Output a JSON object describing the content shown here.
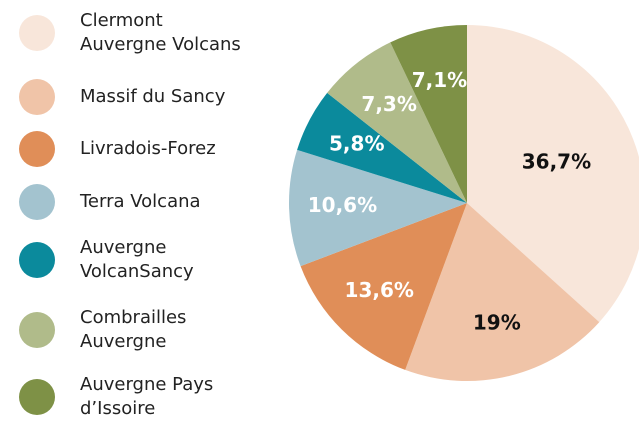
{
  "chart_data": {
    "type": "pie",
    "categories": [
      "Clermont\nAuvergne Volcans",
      "Massif du Sancy",
      "Livradois-Forez",
      "Terra Volcana",
      "Auvergne\nVolcanSancy",
      "Combrailles\nAuvergne",
      "Auvergne Pays\nd’Issoire"
    ],
    "values": [
      36.7,
      19,
      13.6,
      10.6,
      5.8,
      7.3,
      7.1
    ],
    "value_labels": [
      "36,7%",
      "19%",
      "13,6%",
      "10,6%",
      "5,8%",
      "7,3%",
      "7,1%"
    ],
    "colors": [
      "#f8e6da",
      "#f0c4a8",
      "#e08e58",
      "#a3c3cf",
      "#0b8a9c",
      "#b0bb8a",
      "#7e9146"
    ],
    "legend": "left"
  }
}
